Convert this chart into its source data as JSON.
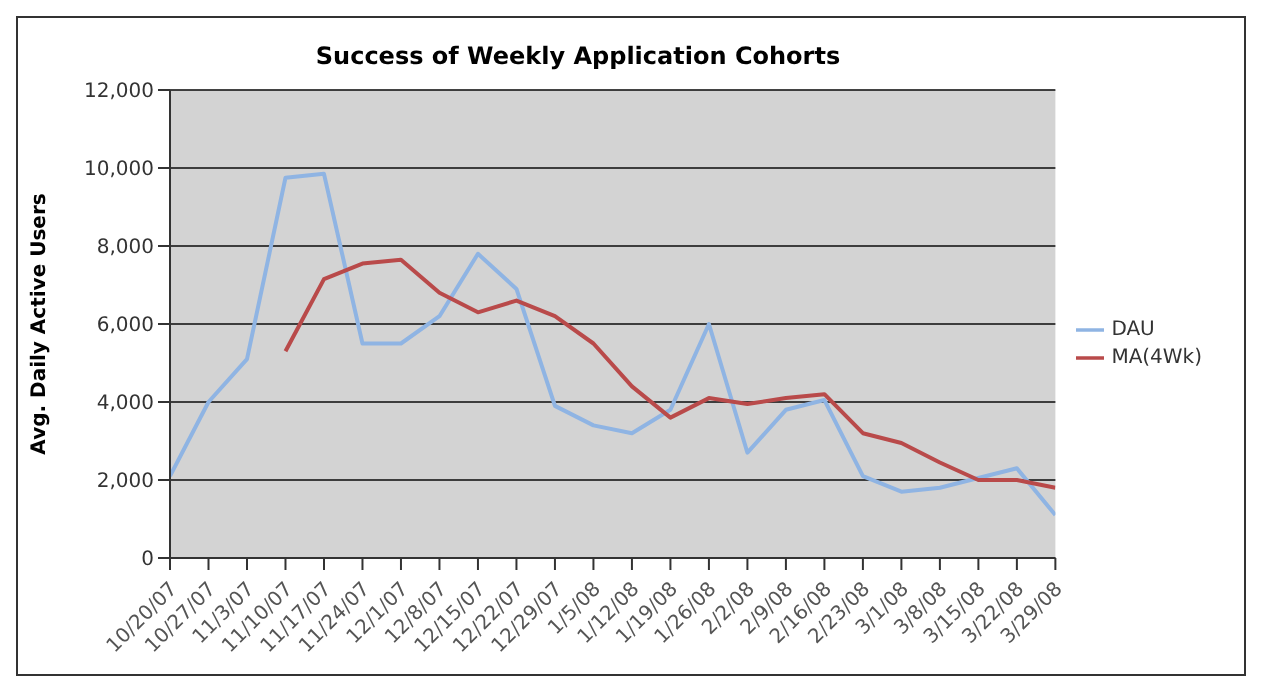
{
  "chart_data": {
    "type": "line",
    "title": "Success of Weekly Application Cohorts",
    "ylabel": "Avg. Daily Active Users",
    "categories": [
      "10/20/07",
      "10/27/07",
      "11/3/07",
      "11/10/07",
      "11/17/07",
      "11/24/07",
      "12/1/07",
      "12/8/07",
      "12/15/07",
      "12/22/07",
      "12/29/07",
      "1/5/08",
      "1/12/08",
      "1/19/08",
      "1/26/08",
      "2/2/08",
      "2/9/08",
      "2/16/08",
      "2/23/08",
      "3/1/08",
      "3/8/08",
      "3/15/08",
      "3/22/08",
      "3/29/08"
    ],
    "series": [
      {
        "name": "DAU",
        "color": "#8fb4e3",
        "values": [
          2100,
          4000,
          5100,
          9750,
          9850,
          5500,
          5500,
          6200,
          7800,
          6900,
          3900,
          3400,
          3200,
          3800,
          6000,
          2700,
          3800,
          4050,
          2100,
          1700,
          1800,
          2050,
          2300,
          1100
        ]
      },
      {
        "name": "MA(4Wk)",
        "color": "#b94a4a",
        "values": [
          null,
          null,
          null,
          5300,
          7150,
          7550,
          7650,
          6800,
          6300,
          6600,
          6200,
          5500,
          4400,
          3600,
          4100,
          3950,
          4100,
          4200,
          3200,
          2950,
          2450,
          2000,
          2000,
          1800
        ]
      }
    ],
    "ylim": [
      0,
      12000
    ],
    "yticks": [
      {
        "value": 0,
        "label": "0"
      },
      {
        "value": 2000,
        "label": "2,000"
      },
      {
        "value": 4000,
        "label": "4,000"
      },
      {
        "value": 6000,
        "label": "6,000"
      },
      {
        "value": 8000,
        "label": "8,000"
      },
      {
        "value": 10000,
        "label": "10,000"
      },
      {
        "value": 12000,
        "label": "12,000"
      }
    ],
    "grid": "y",
    "legend": "right",
    "marker": "none",
    "line_style": "solid"
  }
}
